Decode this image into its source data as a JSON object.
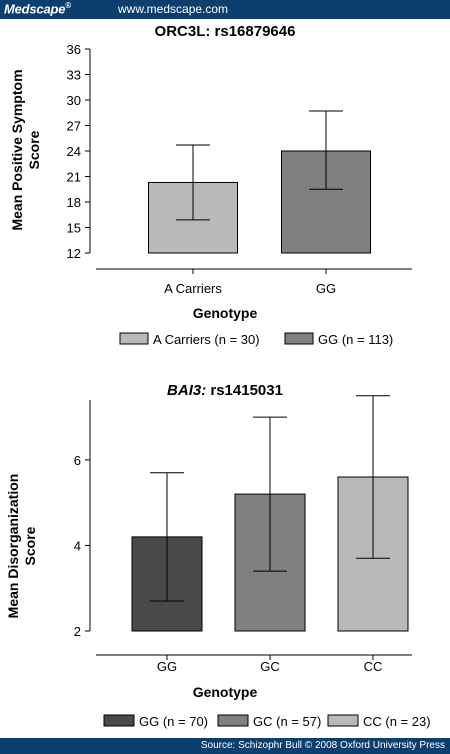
{
  "header": {
    "brand": "Medscape",
    "brand_mark": "®",
    "site": "www.medscape.com"
  },
  "footer": {
    "source": "Source: Schizophr Bull © 2008 Oxford University Press"
  },
  "colors": {
    "header_bg": "#0d3f6e",
    "light_gray": "#b9b9b9",
    "mid_gray": "#808080",
    "dark_gray": "#4a4a4a"
  },
  "chart_data": [
    {
      "type": "bar",
      "title": "ORC3L: rs16879646",
      "xlabel": "Genotype",
      "ylabel": "Mean Positive  Symptom Score",
      "ylabel_lines": [
        "Mean Positive  Symptom",
        "Score"
      ],
      "ylim": [
        12,
        36
      ],
      "yticks": [
        12,
        15,
        18,
        21,
        24,
        27,
        30,
        33,
        36
      ],
      "categories": [
        "A Carriers",
        "GG"
      ],
      "values": [
        20.3,
        24.0
      ],
      "error_low": [
        15.9,
        19.5
      ],
      "error_high": [
        24.7,
        28.7
      ],
      "colors": [
        "#b9b9b9",
        "#808080"
      ],
      "legend": [
        "A Carriers (n = 30)",
        "GG (n = 113)"
      ],
      "grid": false
    },
    {
      "type": "bar",
      "title_italic": "BAI3:",
      "title_rest": " rs1415031",
      "xlabel": "Genotype",
      "ylabel": "Mean Disorganization Score",
      "ylabel_lines": [
        "Mean Disorganization",
        "Score"
      ],
      "ylim": [
        2,
        7.4
      ],
      "yticks": [
        2,
        4,
        6
      ],
      "categories": [
        "GG",
        "GC",
        "CC"
      ],
      "values": [
        4.2,
        5.2,
        5.6
      ],
      "error_low": [
        2.7,
        3.4,
        3.7
      ],
      "error_high": [
        5.7,
        7.0,
        7.5
      ],
      "colors": [
        "#4a4a4a",
        "#808080",
        "#b9b9b9"
      ],
      "legend": [
        "GG (n = 70)",
        "GC (n = 57)",
        "CC (n = 23)"
      ],
      "grid": false
    }
  ]
}
